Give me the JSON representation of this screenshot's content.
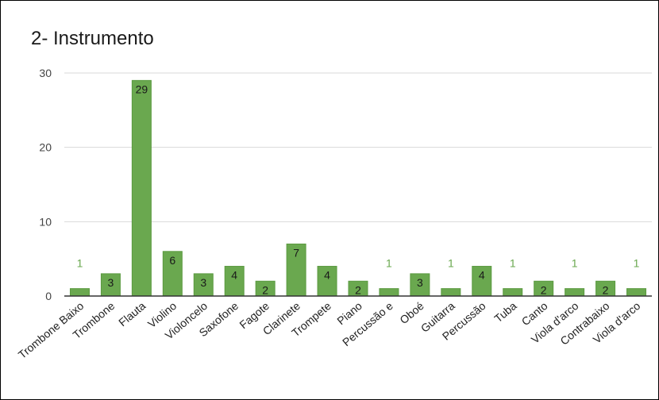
{
  "chart_data": {
    "type": "bar",
    "title": "2- Instrumento",
    "xlabel": "",
    "ylabel": "",
    "categories": [
      "Trombone Baixo",
      "Trombone",
      "Flauta",
      "Violino",
      "Violoncelo",
      "Saxofone",
      "Fagote",
      "Clarinete",
      "Trompete",
      "Piano",
      "Percussão e",
      "Oboé",
      "Guitarra",
      "Percussão",
      "Tuba",
      "Canto",
      "Viola d'arco",
      "Contrabaixo",
      "Viola d'arco"
    ],
    "values": [
      1,
      3,
      29,
      6,
      3,
      4,
      2,
      7,
      4,
      2,
      1,
      3,
      1,
      4,
      1,
      2,
      1,
      2,
      1
    ],
    "ylim": [
      0,
      30
    ],
    "yticks": [
      0,
      10,
      20,
      30
    ],
    "grid": true,
    "legend": "none",
    "data_labels": true,
    "colors": {
      "bar": "#6aa84f",
      "bar_stroke": "#5b9a40",
      "grid": "#d9d9d9",
      "axis": "#333333",
      "label_outside": "#6aa84f"
    }
  }
}
